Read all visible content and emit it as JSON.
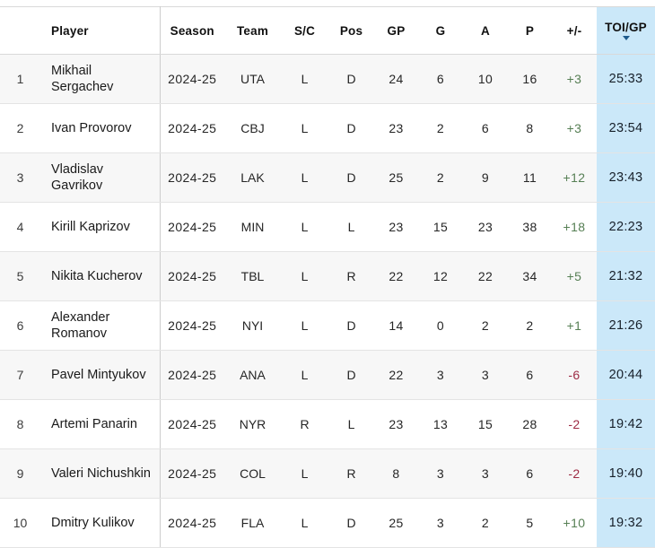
{
  "colors": {
    "highlight": "#cbe8f9",
    "positive": "#567f54",
    "negative": "#9d2b44",
    "caret": "#1e5b8d"
  },
  "table": {
    "sorted_column": "TOI/GP",
    "sort_direction": "desc",
    "columns": [
      {
        "label": ""
      },
      {
        "label": "Player"
      },
      {
        "label": "Season"
      },
      {
        "label": "Team"
      },
      {
        "label": "S/C"
      },
      {
        "label": "Pos"
      },
      {
        "label": "GP"
      },
      {
        "label": "G"
      },
      {
        "label": "A"
      },
      {
        "label": "P"
      },
      {
        "label": "+/-"
      },
      {
        "label": "TOI/GP"
      }
    ],
    "rows": [
      {
        "rank": "1",
        "name": "Mikhail\nSergachev",
        "season": "2024-25",
        "team": "UTA",
        "sc": "L",
        "pos": "D",
        "gp": "24",
        "g": "6",
        "a": "10",
        "p": "16",
        "plus_minus": "+3",
        "toi_gp": "25:33"
      },
      {
        "rank": "2",
        "name": "Ivan Provorov",
        "season": "2024-25",
        "team": "CBJ",
        "sc": "L",
        "pos": "D",
        "gp": "23",
        "g": "2",
        "a": "6",
        "p": "8",
        "plus_minus": "+3",
        "toi_gp": "23:54"
      },
      {
        "rank": "3",
        "name": "Vladislav\nGavrikov",
        "season": "2024-25",
        "team": "LAK",
        "sc": "L",
        "pos": "D",
        "gp": "25",
        "g": "2",
        "a": "9",
        "p": "11",
        "plus_minus": "+12",
        "toi_gp": "23:43"
      },
      {
        "rank": "4",
        "name": "Kirill Kaprizov",
        "season": "2024-25",
        "team": "MIN",
        "sc": "L",
        "pos": "L",
        "gp": "23",
        "g": "15",
        "a": "23",
        "p": "38",
        "plus_minus": "+18",
        "toi_gp": "22:23"
      },
      {
        "rank": "5",
        "name": "Nikita Kucherov",
        "season": "2024-25",
        "team": "TBL",
        "sc": "L",
        "pos": "R",
        "gp": "22",
        "g": "12",
        "a": "22",
        "p": "34",
        "plus_minus": "+5",
        "toi_gp": "21:32"
      },
      {
        "rank": "6",
        "name": "Alexander\nRomanov",
        "season": "2024-25",
        "team": "NYI",
        "sc": "L",
        "pos": "D",
        "gp": "14",
        "g": "0",
        "a": "2",
        "p": "2",
        "plus_minus": "+1",
        "toi_gp": "21:26"
      },
      {
        "rank": "7",
        "name": "Pavel Mintyukov",
        "season": "2024-25",
        "team": "ANA",
        "sc": "L",
        "pos": "D",
        "gp": "22",
        "g": "3",
        "a": "3",
        "p": "6",
        "plus_minus": "-6",
        "toi_gp": "20:44"
      },
      {
        "rank": "8",
        "name": "Artemi Panarin",
        "season": "2024-25",
        "team": "NYR",
        "sc": "R",
        "pos": "L",
        "gp": "23",
        "g": "13",
        "a": "15",
        "p": "28",
        "plus_minus": "-2",
        "toi_gp": "19:42"
      },
      {
        "rank": "9",
        "name": "Valeri Nichushkin",
        "season": "2024-25",
        "team": "COL",
        "sc": "L",
        "pos": "R",
        "gp": "8",
        "g": "3",
        "a": "3",
        "p": "6",
        "plus_minus": "-2",
        "toi_gp": "19:40"
      },
      {
        "rank": "10",
        "name": "Dmitry Kulikov",
        "season": "2024-25",
        "team": "FLA",
        "sc": "L",
        "pos": "D",
        "gp": "25",
        "g": "3",
        "a": "2",
        "p": "5",
        "plus_minus": "+10",
        "toi_gp": "19:32"
      }
    ]
  }
}
